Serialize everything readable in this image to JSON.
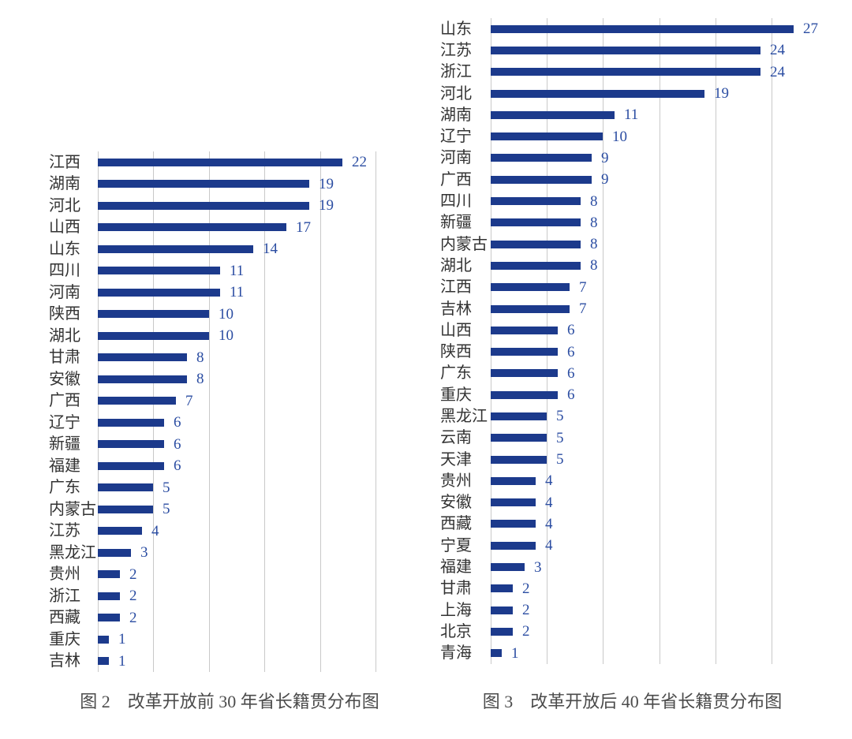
{
  "colors": {
    "bar": "#1c3a8c",
    "value_label": "#2b4da2",
    "gridline": "#c9c9c9",
    "category_label": "#333333",
    "caption": "#4b4b4b",
    "background": "#ffffff"
  },
  "chart_data": [
    {
      "type": "bar",
      "orientation": "horizontal",
      "title": "图 2　改革开放前 30 年省长籍贯分布图",
      "categories": [
        "江西",
        "湖南",
        "河北",
        "山西",
        "山东",
        "四川",
        "河南",
        "陕西",
        "湖北",
        "甘肃",
        "安徽",
        "广西",
        "辽宁",
        "新疆",
        "福建",
        "广东",
        "内蒙古",
        "江苏",
        "黑龙江",
        "贵州",
        "浙江",
        "西藏",
        "重庆",
        "吉林"
      ],
      "values": [
        22,
        19,
        19,
        17,
        14,
        11,
        11,
        10,
        10,
        8,
        8,
        7,
        6,
        6,
        6,
        5,
        5,
        4,
        3,
        2,
        2,
        2,
        1,
        1
      ],
      "xlabel": "",
      "ylabel": "",
      "xlim": [
        0,
        25
      ],
      "gridline_step": 5,
      "grid": true,
      "value_labels": true,
      "legend": false
    },
    {
      "type": "bar",
      "orientation": "horizontal",
      "title": "图 3　改革开放后 40 年省长籍贯分布图",
      "categories": [
        "山东",
        "江苏",
        "浙江",
        "河北",
        "湖南",
        "辽宁",
        "河南",
        "广西",
        "四川",
        "新疆",
        "内蒙古",
        "湖北",
        "江西",
        "吉林",
        "山西",
        "陕西",
        "广东",
        "重庆",
        "黑龙江",
        "云南",
        "天津",
        "贵州",
        "安徽",
        "西藏",
        "宁夏",
        "福建",
        "甘肃",
        "上海",
        "北京",
        "青海"
      ],
      "values": [
        27,
        24,
        24,
        19,
        11,
        10,
        9,
        9,
        8,
        8,
        8,
        8,
        7,
        7,
        6,
        6,
        6,
        6,
        5,
        5,
        5,
        4,
        4,
        4,
        4,
        3,
        2,
        2,
        2,
        1
      ],
      "xlabel": "",
      "ylabel": "",
      "xlim": [
        0,
        25
      ],
      "gridline_step": 5,
      "grid": true,
      "value_labels": true,
      "legend": false
    }
  ]
}
